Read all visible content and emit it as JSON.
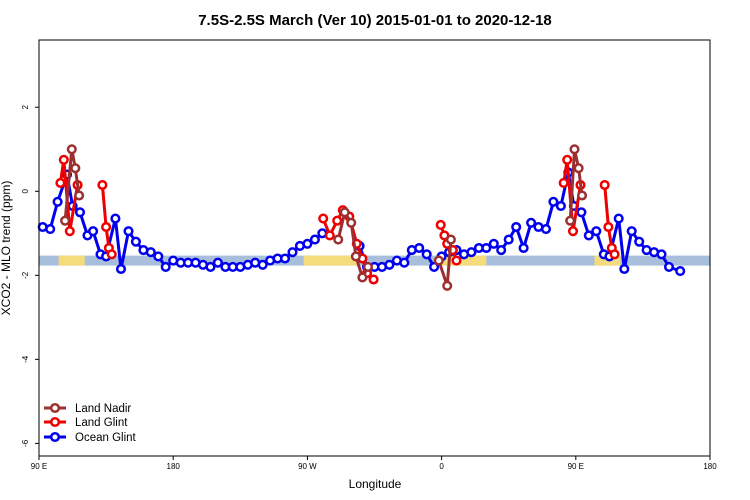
{
  "chart_data": {
    "type": "line",
    "title": "7.5S-2.5S March (Ver 10)   2015-01-01 to 2020-12-18",
    "xlabel": "Longitude",
    "ylabel": "XCO2 - MLO trend (ppm)",
    "xlim": [
      90,
      450
    ],
    "ylim": [
      -6.3,
      3.6
    ],
    "xticks": [
      {
        "value": 90,
        "label": "90 E"
      },
      {
        "value": 162,
        "label": "180"
      },
      {
        "value": 234,
        "label": "90 W"
      },
      {
        "value": 306,
        "label": "0"
      },
      {
        "value": 378,
        "label": "90 E"
      },
      {
        "value": 450,
        "label": "180"
      }
    ],
    "yticks": [
      {
        "value": 2,
        "label": "2"
      },
      {
        "value": 0,
        "label": "0"
      },
      {
        "value": -2,
        "label": "-2"
      },
      {
        "value": -4,
        "label": "-4"
      },
      {
        "value": -6,
        "label": "-6"
      }
    ],
    "legend_position": "bottom-left",
    "band": {
      "y": -1.65,
      "ocean_color": "#a8bfdc",
      "land_color": "#f4dc7c",
      "land_segments": [
        [
          100.5,
          114.5
        ],
        [
          232,
          262
        ],
        [
          303,
          330
        ],
        [
          388,
          402
        ]
      ]
    },
    "series": [
      {
        "name": "Land Nadir",
        "color": "#9c3030",
        "segments": [
          [
            [
              104.0,
              -0.7
            ],
            [
              107.6,
              1.0
            ],
            [
              109.5,
              0.55
            ],
            [
              111.5,
              -0.1
            ]
          ],
          [
            [
              250.5,
              -1.15
            ],
            [
              254.0,
              -0.5
            ],
            [
              257.5,
              -0.75
            ],
            [
              260.0,
              -1.55
            ],
            [
              263.5,
              -2.05
            ],
            [
              266.5,
              -1.8
            ]
          ],
          [
            [
              304.5,
              -1.65
            ],
            [
              309.0,
              -2.25
            ],
            [
              311.0,
              -1.15
            ]
          ],
          [
            [
              375.0,
              -0.7
            ],
            [
              377.3,
              1.0
            ],
            [
              379.5,
              0.55
            ],
            [
              381.3,
              -0.1
            ]
          ]
        ]
      },
      {
        "name": "Land Glint",
        "color": "#ee0000",
        "segments": [
          [
            [
              101.5,
              0.2
            ],
            [
              103.3,
              0.75
            ],
            [
              106.5,
              -0.95
            ],
            [
              110.7,
              0.15
            ]
          ],
          [
            [
              124.0,
              0.15
            ],
            [
              126.0,
              -0.85
            ],
            [
              127.5,
              -1.35
            ],
            [
              129.0,
              -1.5
            ]
          ],
          [
            [
              242.5,
              -0.65
            ],
            [
              246.0,
              -1.05
            ],
            [
              250.0,
              -0.7
            ],
            [
              253.0,
              -0.45
            ],
            [
              256.5,
              -0.6
            ],
            [
              260.5,
              -1.25
            ],
            [
              263.5,
              -1.6
            ],
            [
              266.0,
              -1.95
            ],
            [
              269.5,
              -2.1
            ]
          ],
          [
            [
              305.5,
              -0.8
            ],
            [
              307.5,
              -1.05
            ],
            [
              309.0,
              -1.25
            ],
            [
              312.0,
              -1.4
            ],
            [
              314.0,
              -1.65
            ]
          ],
          [
            [
              371.5,
              0.2
            ],
            [
              373.4,
              0.75
            ],
            [
              376.5,
              -0.95
            ],
            [
              380.5,
              0.15
            ]
          ],
          [
            [
              393.5,
              0.15
            ],
            [
              395.5,
              -0.85
            ],
            [
              397.3,
              -1.35
            ],
            [
              398.8,
              -1.5
            ]
          ]
        ]
      },
      {
        "name": "Ocean Glint",
        "color": "#0000ee",
        "segments": [
          [
            [
              92,
              -0.85
            ],
            [
              96,
              -0.9
            ],
            [
              100,
              -0.25
            ],
            [
              105,
              0.4
            ],
            [
              108,
              -0.35
            ],
            [
              112,
              -0.5
            ],
            [
              116,
              -1.05
            ],
            [
              119,
              -0.95
            ],
            [
              123,
              -1.5
            ],
            [
              126,
              -1.55
            ],
            [
              131,
              -0.65
            ],
            [
              134,
              -1.85
            ],
            [
              138,
              -0.95
            ],
            [
              142,
              -1.2
            ],
            [
              146,
              -1.4
            ],
            [
              150,
              -1.45
            ],
            [
              154,
              -1.55
            ],
            [
              158,
              -1.8
            ],
            [
              162,
              -1.65
            ],
            [
              166,
              -1.7
            ],
            [
              170,
              -1.7
            ],
            [
              174,
              -1.7
            ],
            [
              178,
              -1.75
            ],
            [
              182,
              -1.8
            ],
            [
              186,
              -1.7
            ],
            [
              190,
              -1.8
            ],
            [
              194,
              -1.8
            ],
            [
              198,
              -1.8
            ],
            [
              202,
              -1.75
            ],
            [
              206,
              -1.7
            ],
            [
              210,
              -1.75
            ],
            [
              214,
              -1.65
            ],
            [
              218,
              -1.6
            ],
            [
              222,
              -1.6
            ],
            [
              226,
              -1.45
            ],
            [
              230,
              -1.3
            ],
            [
              234,
              -1.25
            ],
            [
              238,
              -1.15
            ],
            [
              242,
              -1.0
            ]
          ],
          [
            [
              262,
              -1.3
            ],
            [
              266,
              -1.8
            ],
            [
              270,
              -1.8
            ],
            [
              274,
              -1.8
            ],
            [
              278,
              -1.75
            ],
            [
              282,
              -1.65
            ],
            [
              286,
              -1.7
            ],
            [
              290,
              -1.4
            ],
            [
              294,
              -1.35
            ],
            [
              298,
              -1.5
            ],
            [
              302,
              -1.8
            ],
            [
              306,
              -1.55
            ],
            [
              310,
              -1.45
            ],
            [
              314,
              -1.4
            ],
            [
              318,
              -1.5
            ],
            [
              322,
              -1.45
            ],
            [
              326,
              -1.35
            ],
            [
              330,
              -1.35
            ],
            [
              334,
              -1.25
            ],
            [
              338,
              -1.4
            ],
            [
              342,
              -1.15
            ],
            [
              346,
              -0.85
            ],
            [
              350,
              -1.35
            ],
            [
              354,
              -0.75
            ],
            [
              358,
              -0.85
            ],
            [
              362,
              -0.9
            ],
            [
              366,
              -0.25
            ],
            [
              370,
              -0.35
            ],
            [
              374,
              0.45
            ],
            [
              377,
              -0.35
            ],
            [
              381,
              -0.5
            ],
            [
              385,
              -1.05
            ],
            [
              389,
              -0.95
            ],
            [
              393,
              -1.5
            ],
            [
              396,
              -1.55
            ],
            [
              401,
              -0.65
            ],
            [
              404,
              -1.85
            ],
            [
              408,
              -0.95
            ],
            [
              412,
              -1.2
            ],
            [
              416,
              -1.4
            ],
            [
              420,
              -1.45
            ],
            [
              424,
              -1.5
            ],
            [
              428,
              -1.8
            ],
            [
              434,
              -1.9
            ]
          ]
        ]
      }
    ]
  }
}
